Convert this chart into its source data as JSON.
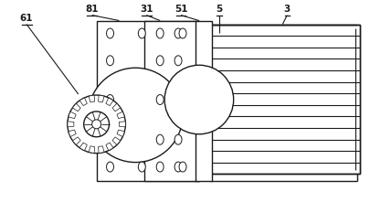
{
  "bg_color": "#ffffff",
  "line_color": "#1a1a1a",
  "lw": 1.0,
  "figsize": [
    4.06,
    2.21
  ],
  "dpi": 100,
  "label_fs": 7.5
}
